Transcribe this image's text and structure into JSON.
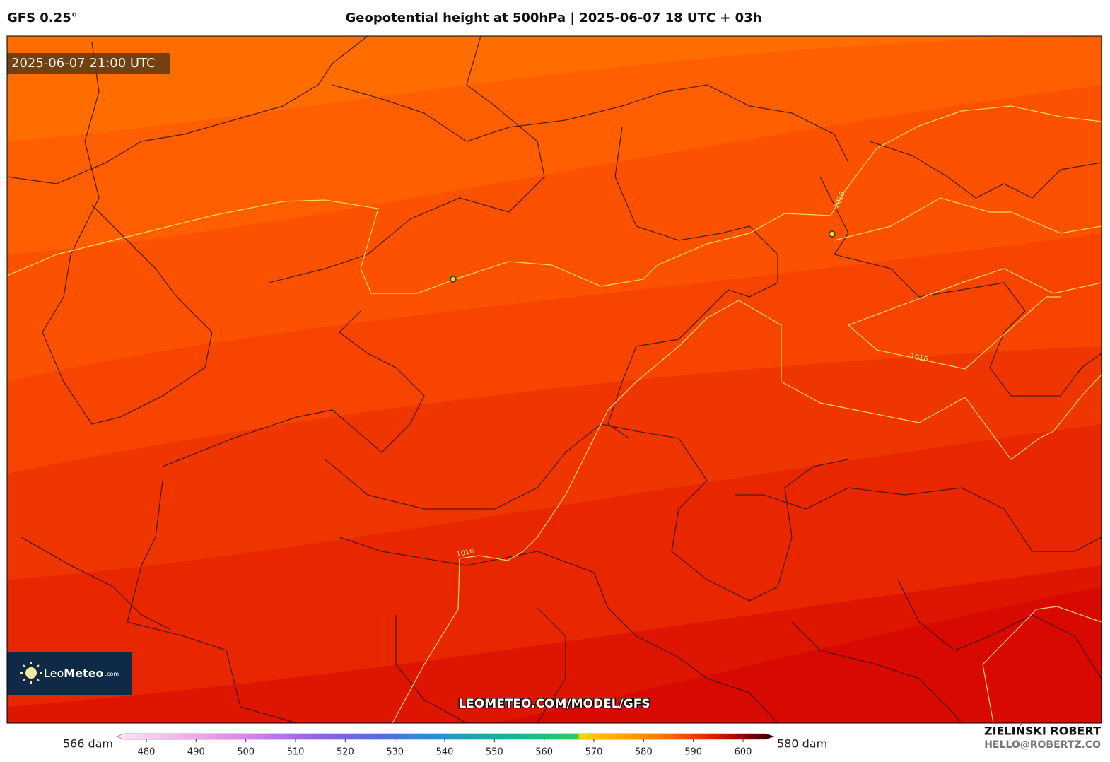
{
  "header": {
    "model": "GFS 0.25°",
    "title": "Geopotential height at 500hPa | 2025-06-07 18 UTC + 03h"
  },
  "map": {
    "valid_time": "2025-06-07 21:00 UTC",
    "contour_labels": [
      1016,
      1016,
      1016
    ],
    "watermark": "LEOMETEO.COM/MODEL/GFS",
    "logo": {
      "name_light": "Leo",
      "name_bold": "Meteo",
      "suffix": ".com"
    }
  },
  "colorbar": {
    "min_label": "566 dam",
    "max_label": "580 dam",
    "ticks": [
      480,
      490,
      500,
      510,
      520,
      530,
      540,
      550,
      560,
      570,
      580,
      590,
      600
    ]
  },
  "footer": {
    "author": "ZIELIŃSKI ROBERT",
    "email": "HELLO@ROBERTZ.CO"
  }
}
